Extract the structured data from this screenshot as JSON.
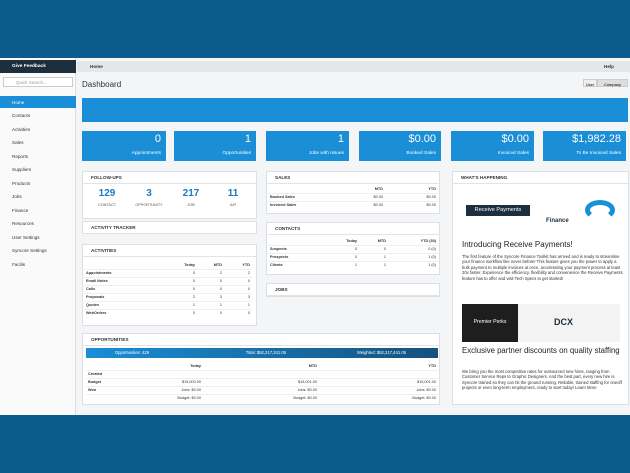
{
  "sidebar": {
    "feedback": "Give Feedback",
    "search": "Quick Search...",
    "nav": [
      "Home",
      "Contacts",
      "Activities",
      "Sales",
      "Reports",
      "Suppliers",
      "Products",
      "Jobs",
      "Finance",
      "Resources",
      "User Settings",
      "Syncore Settings",
      "Facilis"
    ]
  },
  "topbar": {
    "breadcrumb": "Home",
    "help": "Help"
  },
  "page": {
    "title": "Dashboard",
    "toggle": [
      "User",
      "Company"
    ]
  },
  "tiles": [
    {
      "value": 0,
      "label": "Appointments"
    },
    {
      "value": 1,
      "label": "Opportunities"
    },
    {
      "value": 1,
      "label": "Jobs with Issues"
    },
    {
      "value": "$0.00",
      "label": "Booked Sales"
    },
    {
      "value": "$0.00",
      "label": "Invoiced Sales"
    },
    {
      "value": "$1,982.28",
      "label": "To Be Invoiced Sales"
    }
  ],
  "followups": {
    "title": "FOLLOW-UPS",
    "items": [
      {
        "value": 129,
        "label": "CONTACT"
      },
      {
        "value": 3,
        "label": "OPPORTUNITY"
      },
      {
        "value": 217,
        "label": "JOB"
      },
      {
        "value": 11,
        "label": "A/R"
      }
    ]
  },
  "activity_tracker": {
    "title": "ACTIVITY TRACKER"
  },
  "activities": {
    "title": "ACTIVITIES",
    "header": [
      "Today",
      "MTD",
      "YTD"
    ],
    "rows": [
      [
        "Appointments",
        0,
        2,
        2
      ],
      [
        "Email Notes",
        0,
        0,
        0
      ],
      [
        "Calls",
        0,
        0,
        0
      ],
      [
        "Proposals",
        2,
        3,
        3
      ],
      [
        "Quotes",
        1,
        1,
        1
      ],
      [
        "WebOrders",
        0,
        0,
        0
      ]
    ]
  },
  "sales": {
    "title": "SALES",
    "header": [
      "MTD",
      "YTD"
    ],
    "rows": [
      [
        "Booked Sales",
        "$0.00",
        "$0.00"
      ],
      [
        "Invoiced Sales",
        "$0.00",
        "$0.00"
      ]
    ]
  },
  "contacts": {
    "title": "CONTACTS",
    "header": [
      "Today",
      "MTD",
      "YTD (30)"
    ],
    "rows": [
      [
        "Suspects",
        0,
        0,
        "0 (0)"
      ],
      [
        "Prospects",
        0,
        1,
        "1 (0)"
      ],
      [
        "Clients",
        1,
        1,
        "1 (0)"
      ]
    ]
  },
  "jobs": {
    "title": "JOBS"
  },
  "opportunities": {
    "title": "OPPORTUNITIES",
    "summary": [
      "Opportunities: 429",
      "Total: $52,217,241.05",
      "Weighted: $52,217,441.05"
    ],
    "header": [
      "Today",
      "MTD",
      "YTD"
    ],
    "rows": [
      [
        "Created",
        null,
        null,
        null
      ],
      [
        "Budget",
        "$15,000.00",
        "$15,001.00",
        "$15,001.00"
      ],
      [
        "Won",
        "Jobs: $0.00",
        "Jobs: $0.00",
        "Jobs: $0.00"
      ],
      [
        null,
        "Budget: $0.00",
        "Budget: $0.00",
        "Budget: $0.00"
      ]
    ]
  },
  "news": {
    "title": "WHAT'S HAPPENING",
    "items": [
      {
        "banner": "Receive Payments",
        "tag": "Finance",
        "headline": "Introducing Receive Payments!",
        "body": "The first feature of the Syncore Finance Toolkit has arrived and is ready to streamline your finance workflow like never before! This feature gives you the power to apply a bulk payment to multiple invoices at once, accelerating your payment process at least 20x faster. Experience the efficiency, flexibility and convenience the Receive Payments feature has to offer and visit Tech Specs to get started!"
      },
      {
        "banner": "Premier Perks",
        "tag": "DCX",
        "headline": "Exclusive partner discounts on quality staffing",
        "body": "We bring you the most competitive rates for outsourced new hires, ranging from Customer Service Reps to Graphic Designers. And the best part, every new hire is Syncore trained so they can hit the ground running. Reliable, trained staffing for oneoff projects or even long-term employment, ready to start today! Learn More"
      }
    ]
  }
}
